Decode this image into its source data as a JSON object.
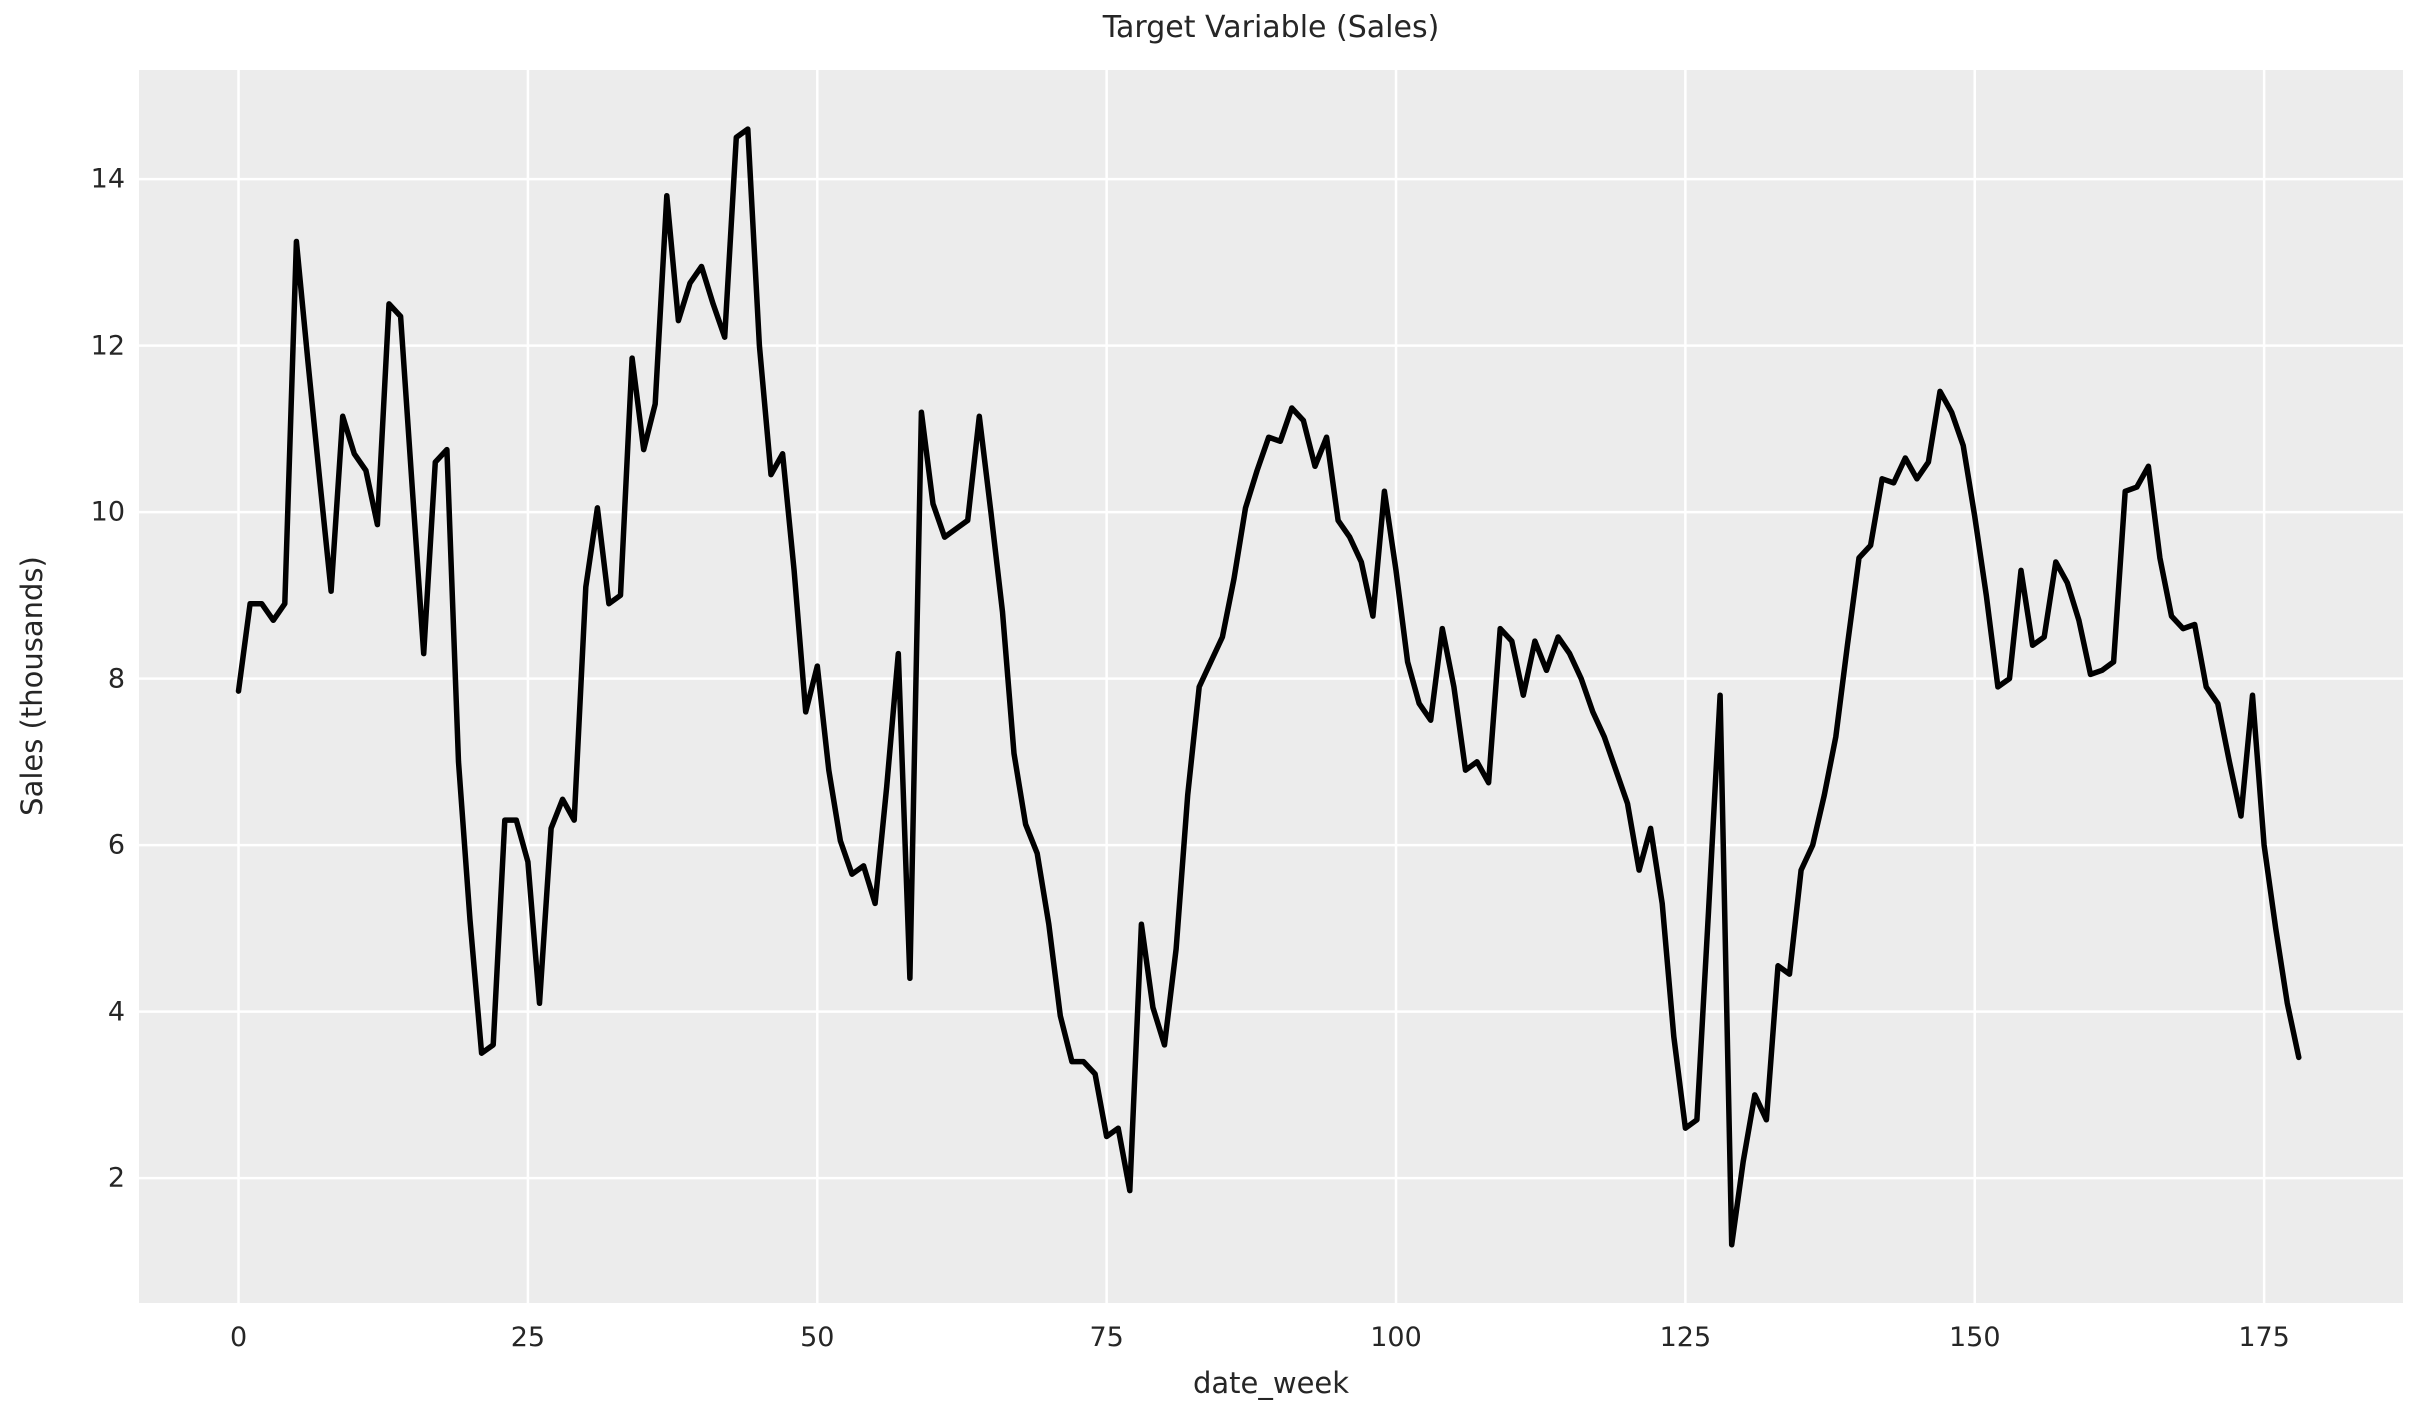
{
  "chart": {
    "title": "Target Variable (Sales)",
    "xlabel": "date_week",
    "ylabel": "Sales (thousands)"
  },
  "chart_data": {
    "type": "line",
    "title": "Target Variable (Sales)",
    "xlabel": "date_week",
    "ylabel": "Sales (thousands)",
    "x_start": 0,
    "x_step": 1,
    "xticks": [
      0,
      25,
      50,
      75,
      100,
      125,
      150,
      175
    ],
    "yticks": [
      2,
      4,
      6,
      8,
      10,
      12,
      14
    ],
    "xlim": [
      -8.6,
      187.0
    ],
    "ylim": [
      0.5,
      15.31
    ],
    "grid": true,
    "legend": false,
    "plot_bg_color": "#ececec",
    "grid_color": "#ffffff",
    "line_color": "#000000",
    "series": [
      {
        "name": "Sales",
        "values": [
          7.85,
          8.9,
          8.9,
          8.7,
          8.9,
          13.25,
          11.8,
          10.4,
          9.05,
          11.15,
          10.7,
          10.5,
          9.85,
          12.5,
          12.35,
          10.3,
          8.3,
          10.6,
          10.75,
          7.0,
          5.1,
          3.5,
          3.6,
          6.3,
          6.3,
          5.8,
          4.1,
          6.2,
          6.55,
          6.3,
          9.1,
          10.05,
          8.9,
          9.0,
          11.85,
          10.75,
          11.3,
          13.8,
          12.3,
          12.75,
          12.95,
          12.5,
          12.1,
          14.5,
          14.6,
          12.0,
          10.45,
          10.7,
          9.3,
          7.6,
          8.15,
          6.9,
          6.05,
          5.65,
          5.75,
          5.3,
          6.7,
          8.3,
          4.4,
          11.2,
          10.1,
          9.7,
          9.8,
          9.9,
          11.15,
          10.0,
          8.8,
          7.1,
          6.25,
          5.9,
          5.05,
          3.95,
          3.4,
          3.4,
          3.25,
          2.5,
          2.6,
          1.85,
          5.05,
          4.05,
          3.6,
          4.75,
          6.6,
          7.9,
          8.2,
          8.5,
          9.2,
          10.05,
          10.5,
          10.9,
          10.85,
          11.25,
          11.1,
          10.55,
          10.9,
          9.9,
          9.7,
          9.4,
          8.75,
          10.25,
          9.3,
          8.2,
          7.7,
          7.5,
          8.6,
          7.9,
          6.9,
          7.0,
          6.75,
          8.6,
          8.45,
          7.8,
          8.45,
          8.1,
          8.5,
          8.3,
          8.0,
          7.6,
          7.3,
          6.9,
          6.5,
          5.7,
          6.2,
          5.3,
          3.7,
          2.6,
          2.7,
          5.2,
          7.8,
          1.2,
          2.2,
          3.0,
          2.7,
          4.55,
          4.45,
          5.7,
          6.0,
          6.6,
          7.3,
          8.4,
          9.45,
          9.6,
          10.4,
          10.35,
          10.65,
          10.4,
          10.6,
          11.45,
          11.2,
          10.8,
          9.95,
          9.0,
          7.9,
          8.0,
          9.3,
          8.4,
          8.5,
          9.4,
          9.15,
          8.7,
          8.05,
          8.1,
          8.2,
          10.25,
          10.3,
          10.55,
          9.45,
          8.75,
          8.6,
          8.65,
          7.9,
          7.7,
          7.0,
          6.35,
          7.8,
          6.0,
          5.0,
          4.1,
          3.45
        ]
      }
    ]
  }
}
